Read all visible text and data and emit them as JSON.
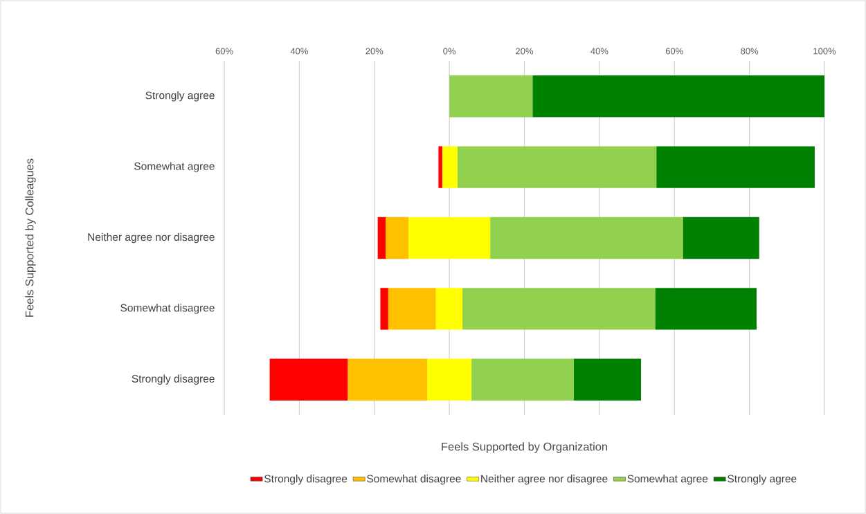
{
  "chart_data": {
    "type": "bar",
    "orientation": "horizontal",
    "stacked": true,
    "xlabel": "Feels Supported by Organization",
    "ylabel": "Feels Supported by Colleagues",
    "categories": [
      "Strongly agree",
      "Somewhat agree",
      "Neither agree nor disagree",
      "Somewhat disagree",
      "Strongly disagree"
    ],
    "series": [
      {
        "color": "#ffff00",
        "values": [
          0,
          -1.9,
          -10.9,
          -3.6,
          -5.9
        ]
      },
      {
        "name": "Somewhat disagree",
        "color": "#ffc000",
        "values": [
          0,
          0,
          -6.1,
          -12.7,
          -21.2
        ]
      },
      {
        "name": "Strongly disagree",
        "color": "#ff0000",
        "values": [
          0,
          -1.0,
          -2.1,
          -2.1,
          -20.8
        ]
      },
      {
        "name": "Neither agree nor disagree",
        "color": "#ffff00",
        "values": [
          0,
          2.2,
          10.9,
          3.5,
          5.9
        ]
      },
      {
        "name": "Somewhat agree",
        "color": "#92d050",
        "values": [
          22.2,
          53.0,
          51.4,
          51.4,
          27.3
        ]
      },
      {
        "name": "Strongly agree",
        "color": "#008000",
        "values": [
          77.8,
          42.2,
          20.3,
          27.0,
          17.9
        ]
      }
    ],
    "xlim": [
      -60,
      100
    ],
    "xticks": [
      {
        "value": -60,
        "label": "60%"
      },
      {
        "value": -40,
        "label": "40%"
      },
      {
        "value": -20,
        "label": "20%"
      },
      {
        "value": 0,
        "label": "0%"
      },
      {
        "value": 20,
        "label": "20%"
      },
      {
        "value": 40,
        "label": "40%"
      },
      {
        "value": 60,
        "label": "60%"
      },
      {
        "value": 80,
        "label": "80%"
      },
      {
        "value": 100,
        "label": "100%"
      }
    ],
    "grid": "x",
    "legend": "bottom"
  }
}
